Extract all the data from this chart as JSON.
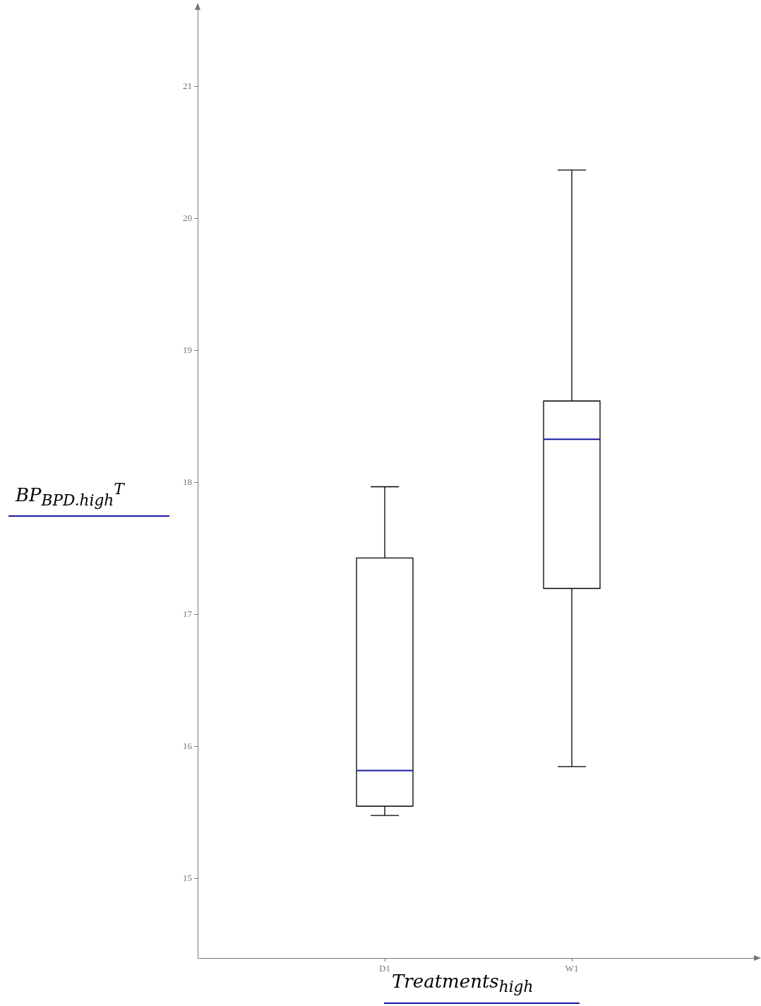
{
  "chart_data": {
    "type": "box",
    "categories": [
      "D1",
      "W1"
    ],
    "xlabel": "Treatments$_{high}$",
    "ylabel": "BP$_{BPD.high}$$^{T}$",
    "ylim": [
      14.4,
      21.6
    ],
    "yticks": [
      15,
      16,
      17,
      18,
      19,
      20,
      21
    ],
    "grid": false,
    "legend": false,
    "series": [
      {
        "color": "#000000",
        "boxes": [
          {
            "low": 15.48,
            "q1": 15.55,
            "median": 15.82,
            "q3": 17.43,
            "high": 17.97
          },
          {
            "low": 15.85,
            "q1": 17.2,
            "median": 18.33,
            "q3": 18.62,
            "high": 20.37
          }
        ]
      }
    ]
  }
}
